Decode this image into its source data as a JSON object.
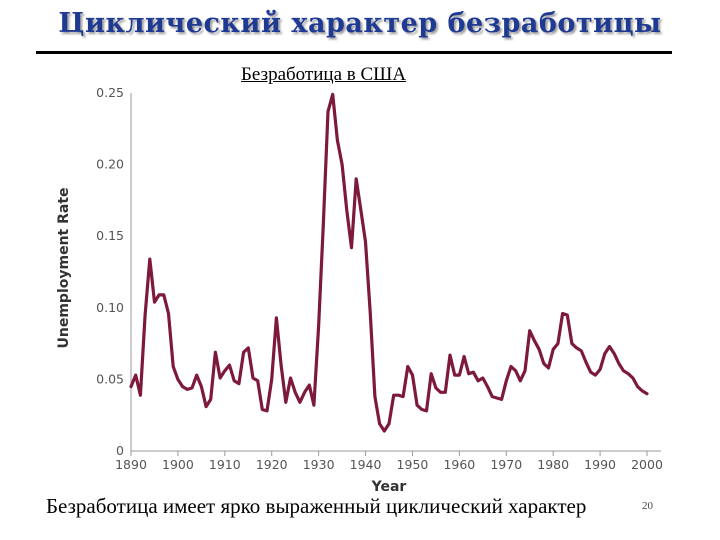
{
  "slide": {
    "title": "Циклический характер безработицы",
    "caption": "Безработица имеет ярко выраженный циклический характер",
    "page_number": "20"
  },
  "colors": {
    "line": "#7d1a3a",
    "axis": "#9a9a9a",
    "title": "#1f3a93"
  },
  "chart_data": {
    "type": "line",
    "title": "Безработица в США",
    "xlabel": "Year",
    "ylabel": "Unemployment Rate",
    "xlim": [
      1890,
      2000
    ],
    "ylim": [
      0,
      0.25
    ],
    "x_ticks": [
      "1890",
      "1900",
      "1910",
      "1920",
      "1930",
      "1940",
      "1950",
      "1960",
      "1970",
      "1980",
      "1990",
      "2000"
    ],
    "y_ticks": [
      "0",
      "0.05",
      "0.10",
      "0.15",
      "0.20",
      "0.25"
    ],
    "grid": false,
    "series": [
      {
        "x": [
          1890,
          1891,
          1892,
          1893,
          1894,
          1895,
          1896,
          1897,
          1898,
          1899,
          1900,
          1901,
          1902,
          1903,
          1904,
          1905,
          1906,
          1907,
          1908,
          1909,
          1910,
          1911,
          1912,
          1913,
          1914,
          1915,
          1916,
          1917,
          1918,
          1919,
          1920,
          1921,
          1922,
          1923,
          1924,
          1925,
          1926,
          1927,
          1928,
          1929,
          1930,
          1931,
          1932,
          1933,
          1934,
          1935,
          1936,
          1937,
          1938,
          1939,
          1940,
          1941,
          1942,
          1943,
          1944,
          1945,
          1946,
          1947,
          1948,
          1949,
          1950,
          1951,
          1952,
          1953,
          1954,
          1955,
          1956,
          1957,
          1958,
          1959,
          1960,
          1961,
          1962,
          1963,
          1964,
          1965,
          1966,
          1967,
          1968,
          1969,
          1970,
          1971,
          1972,
          1973,
          1974,
          1975,
          1976,
          1977,
          1978,
          1979,
          1980,
          1981,
          1982,
          1983,
          1984,
          1985,
          1986,
          1987,
          1988,
          1989,
          1990,
          1991,
          1992,
          1993,
          1994,
          1995,
          1996,
          1997,
          1998,
          1999,
          2000
        ],
        "y": [
          0.045,
          0.053,
          0.039,
          0.095,
          0.134,
          0.104,
          0.109,
          0.109,
          0.096,
          0.059,
          0.05,
          0.045,
          0.043,
          0.044,
          0.053,
          0.045,
          0.031,
          0.036,
          0.069,
          0.051,
          0.056,
          0.06,
          0.049,
          0.047,
          0.069,
          0.072,
          0.051,
          0.049,
          0.029,
          0.028,
          0.05,
          0.093,
          0.06,
          0.034,
          0.051,
          0.041,
          0.034,
          0.041,
          0.046,
          0.032,
          0.087,
          0.158,
          0.237,
          0.249,
          0.217,
          0.2,
          0.168,
          0.142,
          0.19,
          0.168,
          0.146,
          0.097,
          0.038,
          0.019,
          0.014,
          0.019,
          0.039,
          0.039,
          0.038,
          0.059,
          0.053,
          0.032,
          0.029,
          0.028,
          0.054,
          0.044,
          0.041,
          0.041,
          0.067,
          0.053,
          0.053,
          0.066,
          0.054,
          0.055,
          0.049,
          0.051,
          0.045,
          0.038,
          0.037,
          0.036,
          0.049,
          0.059,
          0.056,
          0.049,
          0.056,
          0.084,
          0.077,
          0.071,
          0.061,
          0.058,
          0.071,
          0.075,
          0.096,
          0.095,
          0.075,
          0.072,
          0.07,
          0.062,
          0.055,
          0.053,
          0.057,
          0.068,
          0.073,
          0.068,
          0.061,
          0.056,
          0.054,
          0.051,
          0.045,
          0.042,
          0.04
        ]
      }
    ]
  }
}
